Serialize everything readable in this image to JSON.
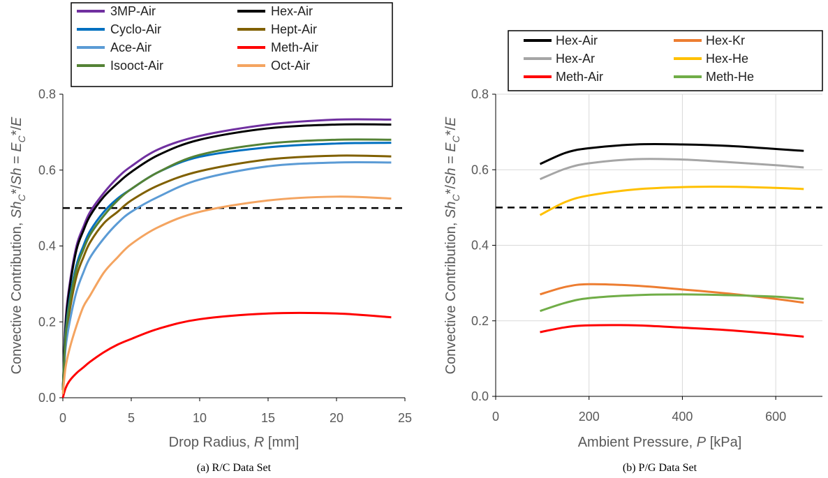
{
  "panels": [
    {
      "caption": "(a) R/C Data Set",
      "ylabel": "Convective Contribution, Sh_C*/Sh = E_C*/E",
      "xlabel": "Drop Radius, R [mm]"
    },
    {
      "caption": "(b) P/G Data Set",
      "ylabel": "Convective Contribution, Sh_C*/Sh = E_C*/E",
      "xlabel": "Ambient Pressure, P [kPa]"
    }
  ],
  "chart_data": [
    {
      "type": "line",
      "title": "",
      "xlabel": "Drop Radius, R [mm]",
      "ylabel": "Convective Contribution, Sh_C*/Sh = E_C*/E",
      "xlim": [
        0,
        25
      ],
      "ylim": [
        0,
        0.8
      ],
      "xticks": [
        "0",
        "5",
        "10",
        "15",
        "20",
        "25"
      ],
      "yticks": [
        "0.0",
        "0.2",
        "0.4",
        "0.6",
        "0.8"
      ],
      "grid": false,
      "legend_position": "top",
      "reference_line": {
        "y": 0.5,
        "style": "dashed"
      },
      "series": [
        {
          "name": "3MP-Air",
          "color": "#7030A0",
          "x": [
            0,
            0.2,
            0.5,
            1,
            1.5,
            2,
            3,
            4,
            5,
            7,
            10,
            15,
            20,
            24
          ],
          "y": [
            0.02,
            0.2,
            0.3,
            0.4,
            0.45,
            0.49,
            0.54,
            0.58,
            0.61,
            0.655,
            0.69,
            0.72,
            0.733,
            0.733
          ]
        },
        {
          "name": "Hex-Air",
          "color": "#000000",
          "x": [
            0,
            0.2,
            0.5,
            1,
            1.5,
            2,
            3,
            4,
            5,
            7,
            10,
            15,
            20,
            24
          ],
          "y": [
            0.02,
            0.19,
            0.29,
            0.39,
            0.44,
            0.48,
            0.53,
            0.565,
            0.595,
            0.64,
            0.68,
            0.71,
            0.72,
            0.72
          ]
        },
        {
          "name": "Cyclo-Air",
          "color": "#0070C0",
          "x": [
            0,
            0.2,
            0.5,
            1,
            1.5,
            2,
            3,
            4,
            5,
            7,
            10,
            15,
            20,
            24
          ],
          "y": [
            0.02,
            0.17,
            0.26,
            0.35,
            0.4,
            0.44,
            0.49,
            0.525,
            0.55,
            0.595,
            0.635,
            0.66,
            0.67,
            0.672
          ]
        },
        {
          "name": "Hept-Air",
          "color": "#806000",
          "x": [
            0,
            0.2,
            0.5,
            1,
            1.5,
            2,
            3,
            4,
            5,
            7,
            10,
            15,
            20,
            24
          ],
          "y": [
            0.02,
            0.15,
            0.23,
            0.32,
            0.37,
            0.41,
            0.46,
            0.49,
            0.52,
            0.56,
            0.597,
            0.628,
            0.638,
            0.636
          ]
        },
        {
          "name": "Ace-Air",
          "color": "#5B9BD5",
          "x": [
            0,
            0.2,
            0.5,
            1,
            1.5,
            2,
            3,
            4,
            5,
            7,
            10,
            15,
            20,
            24
          ],
          "y": [
            0.02,
            0.13,
            0.2,
            0.28,
            0.33,
            0.37,
            0.42,
            0.46,
            0.49,
            0.53,
            0.575,
            0.61,
            0.62,
            0.62
          ]
        },
        {
          "name": "Meth-Air",
          "color": "#FF0000",
          "x": [
            0,
            0.2,
            0.5,
            1,
            1.5,
            2,
            3,
            4,
            5,
            7,
            10,
            15,
            20,
            24
          ],
          "y": [
            0.0,
            0.025,
            0.045,
            0.065,
            0.08,
            0.095,
            0.12,
            0.14,
            0.155,
            0.182,
            0.207,
            0.222,
            0.222,
            0.212
          ]
        },
        {
          "name": "Isooct-Air",
          "color": "#548235",
          "x": [
            0,
            0.2,
            0.5,
            1,
            1.5,
            2,
            3,
            4,
            5,
            7,
            10,
            15,
            20,
            24
          ],
          "y": [
            0.02,
            0.16,
            0.25,
            0.34,
            0.39,
            0.43,
            0.48,
            0.52,
            0.55,
            0.595,
            0.64,
            0.67,
            0.68,
            0.68
          ]
        },
        {
          "name": "Oct-Air",
          "color": "#F4A460",
          "x": [
            0,
            0.2,
            0.5,
            1,
            1.5,
            2,
            3,
            4,
            5,
            7,
            10,
            15,
            20,
            24
          ],
          "y": [
            0.01,
            0.08,
            0.13,
            0.19,
            0.24,
            0.27,
            0.33,
            0.37,
            0.405,
            0.45,
            0.49,
            0.52,
            0.53,
            0.525
          ]
        }
      ]
    },
    {
      "type": "line",
      "title": "",
      "xlabel": "Ambient Pressure, P [kPa]",
      "ylabel": "Convective Contribution, Sh_C*/Sh = E_C*/E",
      "xlim": [
        0,
        700
      ],
      "ylim": [
        0,
        0.8
      ],
      "xticks": [
        "0",
        "200",
        "400",
        "600"
      ],
      "yticks": [
        "0.0",
        "0.2",
        "0.4",
        "0.6",
        "0.8"
      ],
      "grid": true,
      "legend_position": "top",
      "reference_line": {
        "y": 0.5,
        "style": "dashed"
      },
      "series": [
        {
          "name": "Hex-Air",
          "color": "#000000",
          "x": [
            95,
            150,
            200,
            300,
            400,
            500,
            600,
            660
          ],
          "y": [
            0.615,
            0.645,
            0.657,
            0.667,
            0.667,
            0.663,
            0.655,
            0.65
          ]
        },
        {
          "name": "Hex-Kr",
          "color": "#ED7D31",
          "x": [
            95,
            150,
            200,
            300,
            400,
            500,
            600,
            660
          ],
          "y": [
            0.27,
            0.29,
            0.297,
            0.293,
            0.283,
            0.272,
            0.258,
            0.248
          ]
        },
        {
          "name": "Hex-Ar",
          "color": "#A5A5A5",
          "x": [
            95,
            150,
            200,
            300,
            400,
            500,
            600,
            660
          ],
          "y": [
            0.575,
            0.603,
            0.617,
            0.628,
            0.627,
            0.62,
            0.612,
            0.606
          ]
        },
        {
          "name": "Hex-He",
          "color": "#FFC000",
          "x": [
            95,
            150,
            200,
            300,
            400,
            500,
            600,
            660
          ],
          "y": [
            0.48,
            0.515,
            0.532,
            0.548,
            0.554,
            0.555,
            0.552,
            0.549
          ]
        },
        {
          "name": "Meth-Air",
          "color": "#FF0000",
          "x": [
            95,
            150,
            200,
            300,
            400,
            500,
            600,
            660
          ],
          "y": [
            0.17,
            0.183,
            0.188,
            0.188,
            0.182,
            0.175,
            0.165,
            0.158
          ]
        },
        {
          "name": "Meth-He",
          "color": "#70AD47",
          "x": [
            95,
            150,
            200,
            300,
            400,
            500,
            600,
            660
          ],
          "y": [
            0.226,
            0.248,
            0.26,
            0.268,
            0.27,
            0.268,
            0.264,
            0.258
          ]
        }
      ]
    }
  ]
}
